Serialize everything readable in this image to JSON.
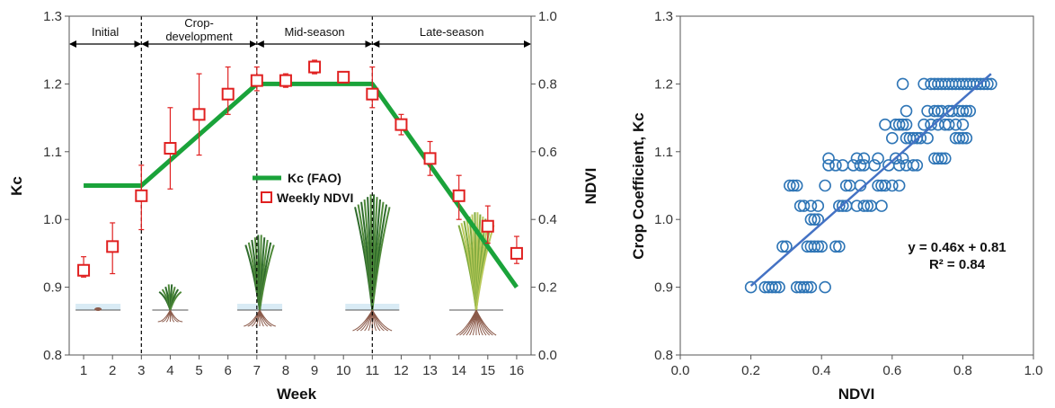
{
  "chart_data": [
    {
      "type": "line",
      "title": "",
      "xlabel": "Week",
      "ylabel": "Kc",
      "y2label": "NDVI",
      "xlim": [
        0.5,
        16.5
      ],
      "ylim": [
        0.8,
        1.3
      ],
      "y2lim": [
        0.0,
        1.0
      ],
      "x_ticks": [
        "1",
        "2",
        "3",
        "4",
        "5",
        "6",
        "7",
        "8",
        "9",
        "10",
        "11",
        "12",
        "13",
        "14",
        "15",
        "16"
      ],
      "y_ticks": [
        "0.8",
        "0.9",
        "1.0",
        "1.1",
        "1.2",
        "1.3"
      ],
      "y2_ticks": [
        "0.0",
        "0.2",
        "0.4",
        "0.6",
        "0.8",
        "1.0"
      ],
      "stages": [
        {
          "label": "Initial",
          "start": 0.5,
          "end": 3
        },
        {
          "label": "Crop-",
          "label2": "development",
          "start": 3,
          "end": 7
        },
        {
          "label": "Mid-season",
          "start": 7,
          "end": 11
        },
        {
          "label": "Late-season",
          "start": 11,
          "end": 16.5
        }
      ],
      "stage_boundaries": [
        3,
        7,
        11
      ],
      "legend": {
        "placement": "center",
        "kc_label": "Kc (FAO)",
        "ndvi_label": "Weekly NDVI"
      },
      "series": [
        {
          "name": "Kc (FAO)",
          "axis": "left",
          "color": "#1aa33a",
          "points": [
            [
              1,
              1.05
            ],
            [
              3,
              1.05
            ],
            [
              7,
              1.2
            ],
            [
              11,
              1.2
            ],
            [
              16,
              0.9
            ]
          ]
        },
        {
          "name": "Weekly NDVI",
          "axis": "right",
          "color": "#e02020",
          "x": [
            1,
            2,
            3,
            4,
            5,
            6,
            7,
            8,
            9,
            10,
            11,
            12,
            13,
            14,
            15,
            16
          ],
          "values": [
            0.25,
            0.32,
            0.47,
            0.61,
            0.71,
            0.77,
            0.81,
            0.81,
            0.85,
            0.82,
            0.77,
            0.68,
            0.58,
            0.47,
            0.38,
            0.3
          ],
          "err_low": [
            0.02,
            0.08,
            0.1,
            0.12,
            0.12,
            0.06,
            0.03,
            0.02,
            0.02,
            0.01,
            0.04,
            0.03,
            0.05,
            0.07,
            0.05,
            0.03
          ],
          "err_high": [
            0.04,
            0.07,
            0.09,
            0.12,
            0.12,
            0.08,
            0.04,
            0.02,
            0.02,
            0.01,
            0.08,
            0.03,
            0.05,
            0.06,
            0.06,
            0.05
          ]
        }
      ]
    },
    {
      "type": "scatter",
      "title": "",
      "xlabel": "NDVI",
      "ylabel": "Crop Coefficient, Kc",
      "xlim": [
        0.0,
        1.0
      ],
      "ylim": [
        0.8,
        1.3
      ],
      "x_ticks": [
        "0.0",
        "0.2",
        "0.4",
        "0.6",
        "0.8",
        "1.0"
      ],
      "y_ticks": [
        "0.8",
        "0.9",
        "1.0",
        "1.1",
        "1.2",
        "1.3"
      ],
      "marker_color": "#2e75b6",
      "trendline": {
        "color": "#4472c4",
        "x_range": [
          0.2,
          0.88
        ],
        "slope": 0.46,
        "intercept": 0.81
      },
      "equation": "y = 0.46x + 0.81",
      "r_squared": "R² = 0.84",
      "points": [
        [
          0.2,
          0.9
        ],
        [
          0.24,
          0.9
        ],
        [
          0.25,
          0.9
        ],
        [
          0.26,
          0.9
        ],
        [
          0.27,
          0.9
        ],
        [
          0.28,
          0.9
        ],
        [
          0.33,
          0.9
        ],
        [
          0.34,
          0.9
        ],
        [
          0.35,
          0.9
        ],
        [
          0.36,
          0.9
        ],
        [
          0.37,
          0.9
        ],
        [
          0.41,
          0.9
        ],
        [
          0.29,
          0.96
        ],
        [
          0.3,
          0.96
        ],
        [
          0.36,
          0.96
        ],
        [
          0.37,
          0.96
        ],
        [
          0.38,
          0.96
        ],
        [
          0.39,
          0.96
        ],
        [
          0.4,
          0.96
        ],
        [
          0.44,
          0.96
        ],
        [
          0.45,
          0.96
        ],
        [
          0.37,
          1.0
        ],
        [
          0.38,
          1.0
        ],
        [
          0.39,
          1.0
        ],
        [
          0.34,
          1.02
        ],
        [
          0.35,
          1.02
        ],
        [
          0.37,
          1.02
        ],
        [
          0.39,
          1.02
        ],
        [
          0.45,
          1.02
        ],
        [
          0.46,
          1.02
        ],
        [
          0.47,
          1.02
        ],
        [
          0.5,
          1.02
        ],
        [
          0.52,
          1.02
        ],
        [
          0.53,
          1.02
        ],
        [
          0.54,
          1.02
        ],
        [
          0.57,
          1.02
        ],
        [
          0.31,
          1.05
        ],
        [
          0.32,
          1.05
        ],
        [
          0.33,
          1.05
        ],
        [
          0.41,
          1.05
        ],
        [
          0.47,
          1.05
        ],
        [
          0.48,
          1.05
        ],
        [
          0.51,
          1.05
        ],
        [
          0.56,
          1.05
        ],
        [
          0.57,
          1.05
        ],
        [
          0.58,
          1.05
        ],
        [
          0.6,
          1.05
        ],
        [
          0.62,
          1.05
        ],
        [
          0.42,
          1.08
        ],
        [
          0.44,
          1.08
        ],
        [
          0.46,
          1.08
        ],
        [
          0.49,
          1.08
        ],
        [
          0.51,
          1.08
        ],
        [
          0.52,
          1.08
        ],
        [
          0.55,
          1.08
        ],
        [
          0.59,
          1.08
        ],
        [
          0.62,
          1.08
        ],
        [
          0.64,
          1.08
        ],
        [
          0.66,
          1.08
        ],
        [
          0.67,
          1.08
        ],
        [
          0.42,
          1.09
        ],
        [
          0.5,
          1.09
        ],
        [
          0.52,
          1.09
        ],
        [
          0.56,
          1.09
        ],
        [
          0.61,
          1.09
        ],
        [
          0.63,
          1.09
        ],
        [
          0.72,
          1.09
        ],
        [
          0.73,
          1.09
        ],
        [
          0.74,
          1.09
        ],
        [
          0.75,
          1.09
        ],
        [
          0.6,
          1.12
        ],
        [
          0.64,
          1.12
        ],
        [
          0.65,
          1.12
        ],
        [
          0.66,
          1.12
        ],
        [
          0.67,
          1.12
        ],
        [
          0.68,
          1.12
        ],
        [
          0.7,
          1.12
        ],
        [
          0.78,
          1.12
        ],
        [
          0.79,
          1.12
        ],
        [
          0.8,
          1.12
        ],
        [
          0.81,
          1.12
        ],
        [
          0.58,
          1.14
        ],
        [
          0.61,
          1.14
        ],
        [
          0.62,
          1.14
        ],
        [
          0.63,
          1.14
        ],
        [
          0.64,
          1.14
        ],
        [
          0.69,
          1.14
        ],
        [
          0.71,
          1.14
        ],
        [
          0.73,
          1.14
        ],
        [
          0.75,
          1.14
        ],
        [
          0.76,
          1.14
        ],
        [
          0.78,
          1.14
        ],
        [
          0.8,
          1.14
        ],
        [
          0.64,
          1.16
        ],
        [
          0.7,
          1.16
        ],
        [
          0.72,
          1.16
        ],
        [
          0.73,
          1.16
        ],
        [
          0.74,
          1.16
        ],
        [
          0.76,
          1.16
        ],
        [
          0.77,
          1.16
        ],
        [
          0.79,
          1.16
        ],
        [
          0.8,
          1.16
        ],
        [
          0.81,
          1.16
        ],
        [
          0.82,
          1.16
        ],
        [
          0.63,
          1.2
        ],
        [
          0.69,
          1.2
        ],
        [
          0.71,
          1.2
        ],
        [
          0.72,
          1.2
        ],
        [
          0.73,
          1.2
        ],
        [
          0.74,
          1.2
        ],
        [
          0.75,
          1.2
        ],
        [
          0.76,
          1.2
        ],
        [
          0.77,
          1.2
        ],
        [
          0.78,
          1.2
        ],
        [
          0.79,
          1.2
        ],
        [
          0.8,
          1.2
        ],
        [
          0.81,
          1.2
        ],
        [
          0.82,
          1.2
        ],
        [
          0.83,
          1.2
        ],
        [
          0.84,
          1.2
        ],
        [
          0.85,
          1.2
        ],
        [
          0.86,
          1.2
        ],
        [
          0.87,
          1.2
        ],
        [
          0.88,
          1.2
        ]
      ]
    }
  ]
}
